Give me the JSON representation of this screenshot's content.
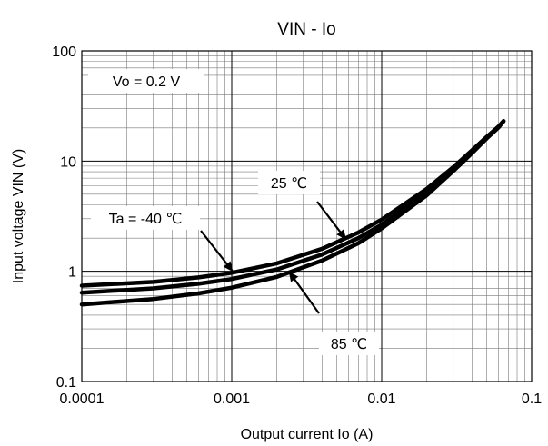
{
  "chart_data": {
    "type": "line",
    "title": "VIN - Io",
    "xlabel": "Output current Io (A)",
    "ylabel": "Input voltage VIN (V)",
    "x_scale": "log",
    "y_scale": "log",
    "xlim": [
      0.0001,
      0.1
    ],
    "ylim": [
      0.1,
      100
    ],
    "x_ticks": [
      "0.0001",
      "0.001",
      "0.01",
      "0.1"
    ],
    "y_ticks": [
      "0.1",
      "1",
      "10",
      "100"
    ],
    "grid": true,
    "series": [
      {
        "name": "Ta = -40 ℃",
        "x": [
          0.0001,
          0.0003,
          0.0006,
          0.001,
          0.002,
          0.004,
          0.007,
          0.01,
          0.02,
          0.03,
          0.04,
          0.05,
          0.06,
          0.065
        ],
        "y": [
          0.74,
          0.8,
          0.88,
          0.97,
          1.18,
          1.6,
          2.25,
          2.95,
          5.6,
          8.8,
          12.5,
          16.5,
          20.5,
          23
        ]
      },
      {
        "name": "25 ℃",
        "x": [
          0.0001,
          0.0003,
          0.0006,
          0.001,
          0.002,
          0.004,
          0.007,
          0.01,
          0.02,
          0.03,
          0.04,
          0.05,
          0.06,
          0.065
        ],
        "y": [
          0.64,
          0.7,
          0.77,
          0.85,
          1.04,
          1.42,
          2.0,
          2.65,
          5.2,
          8.4,
          12.1,
          16.2,
          20.3,
          23
        ]
      },
      {
        "name": "85 ℃",
        "x": [
          0.0001,
          0.0003,
          0.0006,
          0.001,
          0.002,
          0.004,
          0.007,
          0.01,
          0.02,
          0.03,
          0.04,
          0.05,
          0.06,
          0.065
        ],
        "y": [
          0.5,
          0.56,
          0.63,
          0.71,
          0.89,
          1.25,
          1.8,
          2.45,
          4.9,
          8.1,
          11.8,
          16.0,
          20.1,
          23
        ]
      }
    ],
    "annotations": [
      {
        "text": "Vo = 0.2 V"
      },
      {
        "text": "Ta = -40 ℃",
        "points_to": "Ta = -40 ℃"
      },
      {
        "text": "25 ℃",
        "points_to": "25 ℃"
      },
      {
        "text": "85 ℃",
        "points_to": "85 ℃"
      }
    ]
  }
}
